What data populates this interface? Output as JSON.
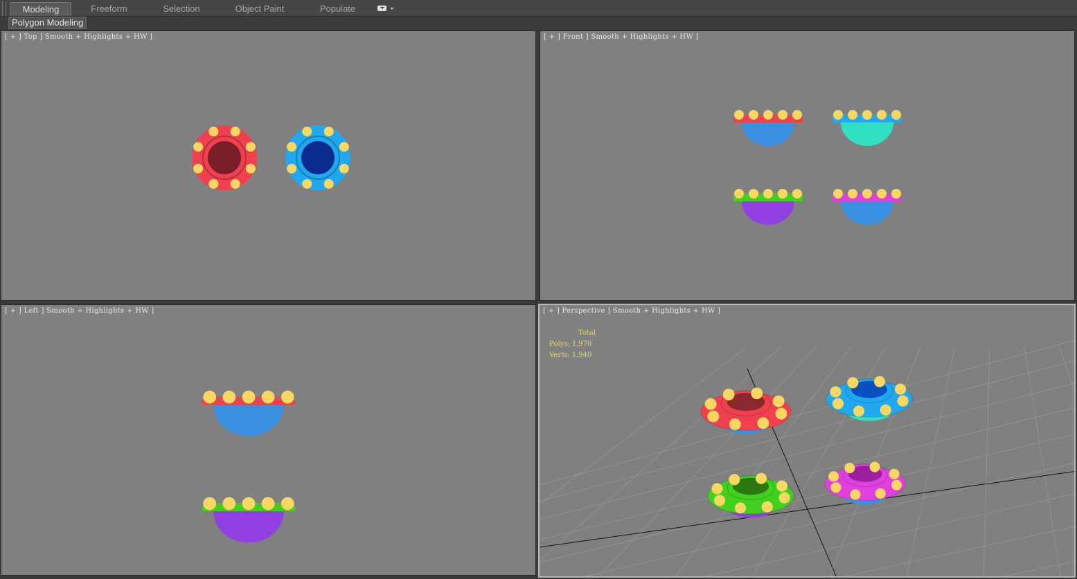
{
  "ribbon": {
    "tabs": [
      {
        "label": "Modeling",
        "active": true
      },
      {
        "label": "Freeform"
      },
      {
        "label": "Selection"
      },
      {
        "label": "Object Paint"
      },
      {
        "label": "Populate"
      }
    ],
    "sub_label": "Polygon Modeling"
  },
  "viewports": {
    "top": {
      "label": "[ + ] Top ] Smooth + Highlights + HW ]"
    },
    "front": {
      "label": "[ + ] Front ] Smooth + Highlights + HW ]"
    },
    "left": {
      "label": "[ + ] Left ] Smooth + Highlights + HW ]"
    },
    "perspective": {
      "label": "[ + ] Perspective ] Smooth + Highlights + HW ]"
    }
  },
  "stats": {
    "title": "Total",
    "polys_label": "Polys:",
    "polys": "1,976",
    "verts_label": "Verts:",
    "verts": "1,940"
  },
  "colors": {
    "viewport_bg": "#808080",
    "stats_text": "#e8d860",
    "red": "#f04050",
    "blue": "#20a8f0",
    "green": "#40d020",
    "magenta": "#e040e0",
    "bulb": "#f8d860"
  }
}
